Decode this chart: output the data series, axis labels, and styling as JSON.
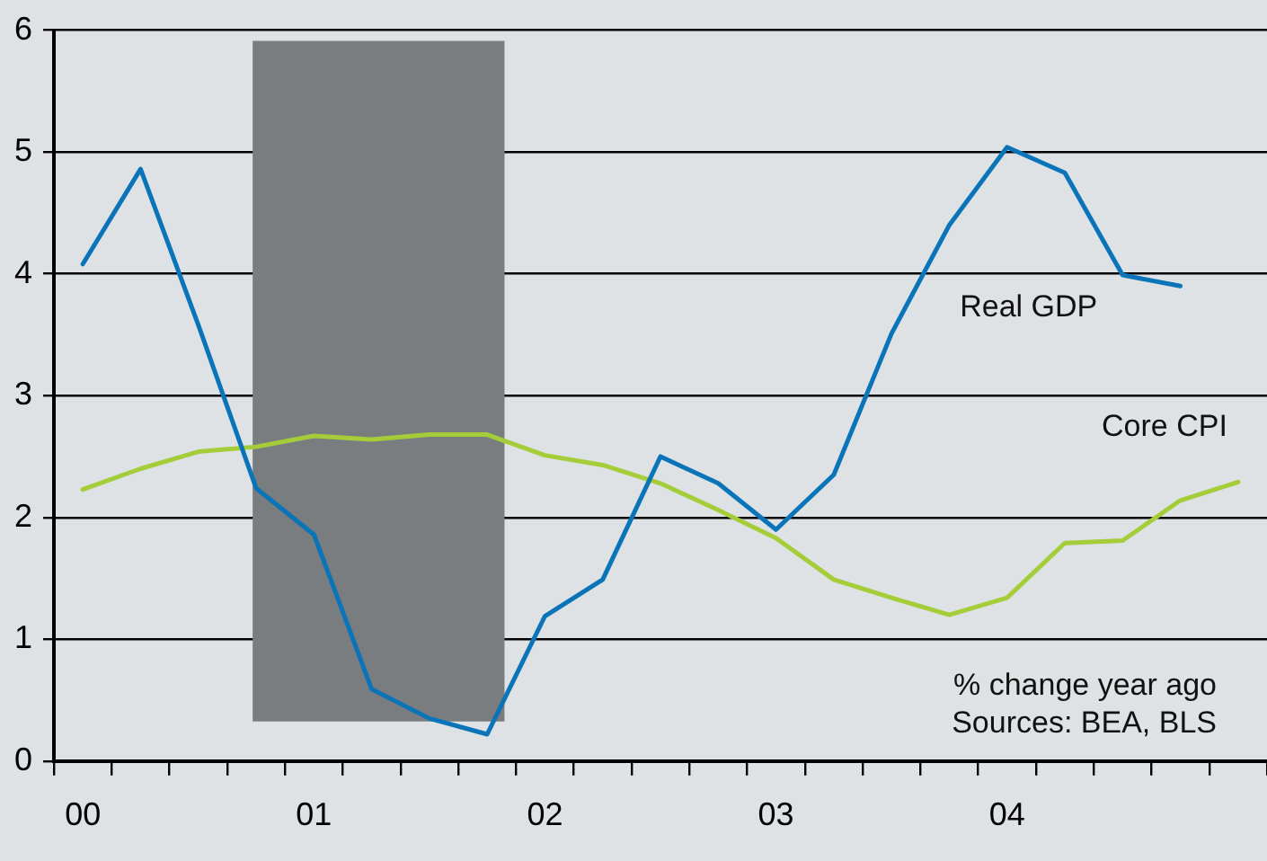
{
  "chart_data": {
    "type": "line",
    "categories": [
      "00",
      null,
      null,
      null,
      "01",
      null,
      null,
      null,
      "02",
      null,
      null,
      null,
      "03",
      null,
      null,
      null,
      "04",
      null,
      null,
      null,
      null
    ],
    "series": [
      {
        "name": "Real GDP",
        "color": "#0a74b9",
        "values": [
          4.08,
          4.86,
          3.58,
          2.24,
          1.86,
          0.59,
          0.35,
          0.22,
          1.19,
          1.49,
          2.5,
          2.28,
          1.9,
          2.35,
          3.51,
          4.4,
          5.04,
          4.83,
          3.99,
          3.9,
          null
        ]
      },
      {
        "name": "Core CPI",
        "color": "#a5cd39",
        "values": [
          2.23,
          2.4,
          2.54,
          2.58,
          2.67,
          2.64,
          2.68,
          2.68,
          2.51,
          2.43,
          2.28,
          2.06,
          1.83,
          1.49,
          1.34,
          1.2,
          1.34,
          1.79,
          1.81,
          2.14,
          2.29
        ]
      }
    ],
    "ylim": [
      0,
      6
    ],
    "yticks": [
      0,
      1,
      2,
      3,
      4,
      5,
      6
    ],
    "grid": "y",
    "legend": false,
    "marker": "none",
    "line_style": "solid",
    "annotations": [
      "% change year ago",
      "Sources: BEA, BLS"
    ]
  }
}
